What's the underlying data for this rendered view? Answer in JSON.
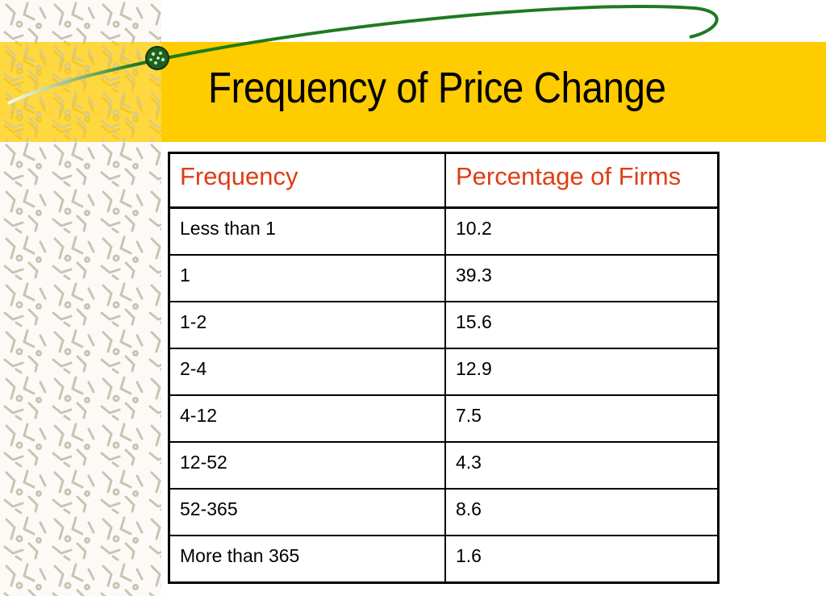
{
  "slide": {
    "title": "Frequency of Price Change",
    "colors": {
      "band": "#ffcc00",
      "header_text": "#e03c14",
      "swoosh": "#1e7a1e"
    },
    "decoration": "molecule-pattern"
  },
  "table": {
    "headers": [
      "Frequency",
      "Percentage of Firms"
    ],
    "rows": [
      [
        "Less than 1",
        "10.2"
      ],
      [
        "1",
        "39.3"
      ],
      [
        "1-2",
        "15.6"
      ],
      [
        "2-4",
        "12.9"
      ],
      [
        "4-12",
        "7.5"
      ],
      [
        "12-52",
        "4.3"
      ],
      [
        "52-365",
        "8.6"
      ],
      [
        "More than 365",
        "1.6"
      ]
    ]
  }
}
